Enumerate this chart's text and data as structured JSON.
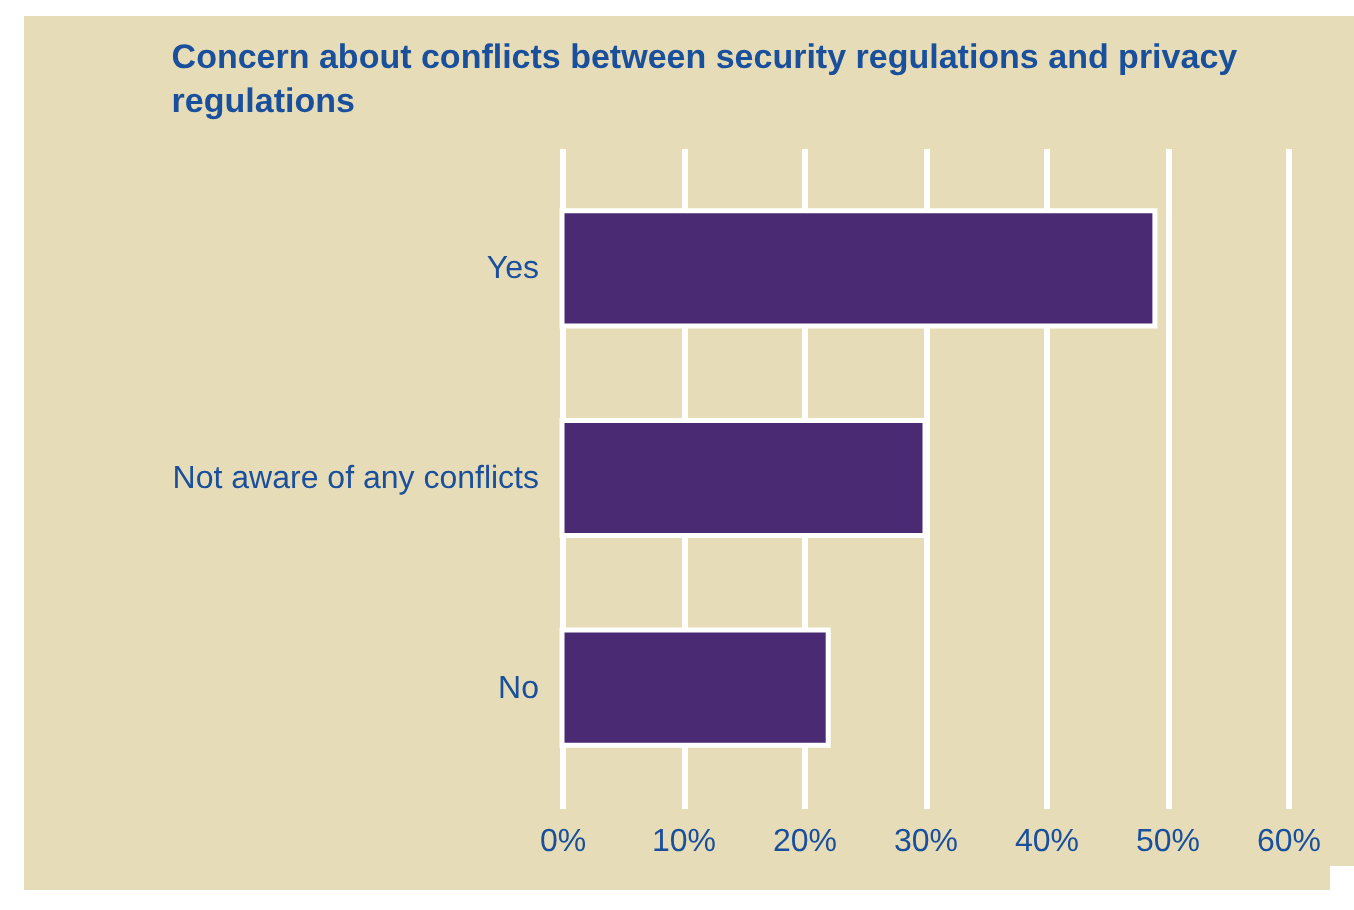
{
  "chart_data": {
    "type": "bar",
    "orientation": "horizontal",
    "title": "Concern about conflicts between security regulations and privacy regulations",
    "categories": [
      "Yes",
      "Not aware of any conflicts",
      "No"
    ],
    "values": [
      49,
      30,
      22
    ],
    "color": "#4b2a74",
    "xlim": [
      0,
      60
    ],
    "xticks": [
      {
        "value": 0,
        "label": "0%"
      },
      {
        "value": 10,
        "label": "10%"
      },
      {
        "value": 20,
        "label": "20%"
      },
      {
        "value": 30,
        "label": "30%"
      },
      {
        "value": 40,
        "label": "40%"
      },
      {
        "value": 50,
        "label": "50%"
      },
      {
        "value": 60,
        "label": "60%"
      }
    ],
    "grid": "x"
  }
}
